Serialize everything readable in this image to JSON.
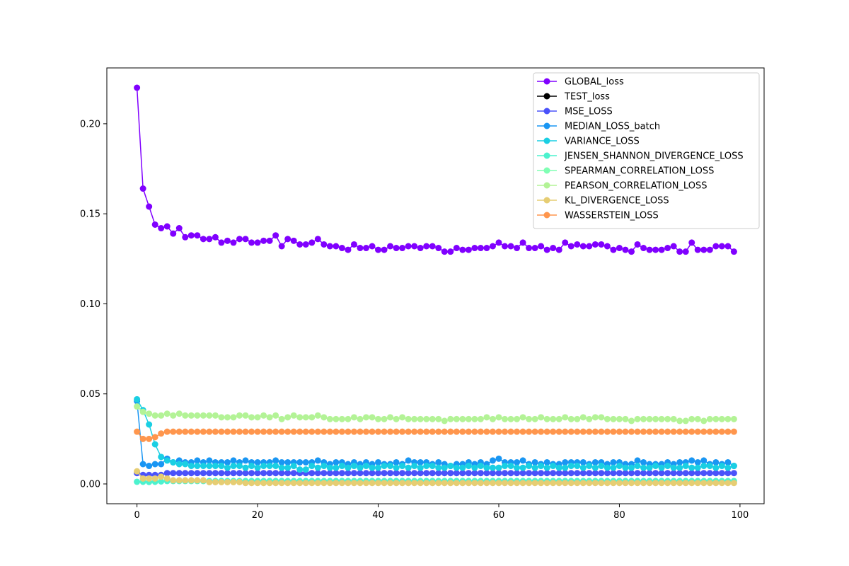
{
  "chart_data": {
    "type": "line",
    "title": "",
    "xlabel": "",
    "ylabel": "",
    "xlim": [
      -5,
      104
    ],
    "ylim": [
      -0.011,
      0.231
    ],
    "xticks": [
      0,
      20,
      40,
      60,
      80,
      100
    ],
    "xtick_labels": [
      "0",
      "20",
      "40",
      "60",
      "80",
      "100"
    ],
    "yticks": [
      0.0,
      0.05,
      0.1,
      0.15,
      0.2
    ],
    "ytick_labels": [
      "0.00",
      "0.05",
      "0.10",
      "0.15",
      "0.20"
    ],
    "grid": false,
    "legend_position": "top-right",
    "series": [
      {
        "name": "GLOBAL_loss",
        "color": "#8000ff",
        "values": [
          0.22,
          0.164,
          0.154,
          0.144,
          0.142,
          0.143,
          0.139,
          0.142,
          0.137,
          0.138,
          0.138,
          0.136,
          0.136,
          0.137,
          0.134,
          0.135,
          0.134,
          0.136,
          0.136,
          0.134,
          0.134,
          0.135,
          0.135,
          0.138,
          0.132,
          0.136,
          0.135,
          0.133,
          0.133,
          0.134,
          0.136,
          0.133,
          0.132,
          0.132,
          0.131,
          0.13,
          0.133,
          0.131,
          0.131,
          0.132,
          0.13,
          0.13,
          0.132,
          0.131,
          0.131,
          0.132,
          0.132,
          0.131,
          0.132,
          0.132,
          0.131,
          0.129,
          0.129,
          0.131,
          0.13,
          0.13,
          0.131,
          0.131,
          0.131,
          0.132,
          0.134,
          0.132,
          0.132,
          0.131,
          0.134,
          0.131,
          0.131,
          0.132,
          0.13,
          0.131,
          0.13,
          0.134,
          0.132,
          0.133,
          0.132,
          0.132,
          0.133,
          0.133,
          0.132,
          0.13,
          0.131,
          0.13,
          0.129,
          0.133,
          0.131,
          0.13,
          0.13,
          0.13,
          0.131,
          0.132,
          0.129,
          0.129,
          0.134,
          0.13,
          0.13,
          0.13,
          0.132,
          0.132,
          0.132,
          0.129
        ]
      },
      {
        "name": "TEST_loss",
        "color": "#000000",
        "values": []
      },
      {
        "name": "MSE_LOSS",
        "color": "#4a52fa",
        "values": [
          0.006,
          0.005,
          0.005,
          0.005,
          0.005,
          0.006,
          0.006,
          0.006,
          0.006,
          0.006,
          0.006,
          0.006,
          0.006,
          0.006,
          0.006,
          0.006,
          0.006,
          0.006,
          0.006,
          0.006,
          0.006,
          0.006,
          0.006,
          0.006,
          0.006,
          0.006,
          0.006,
          0.006,
          0.006,
          0.006,
          0.006,
          0.006,
          0.006,
          0.006,
          0.006,
          0.006,
          0.006,
          0.006,
          0.006,
          0.006,
          0.006,
          0.006,
          0.006,
          0.006,
          0.006,
          0.006,
          0.006,
          0.006,
          0.006,
          0.006,
          0.006,
          0.006,
          0.006,
          0.006,
          0.006,
          0.006,
          0.006,
          0.006,
          0.006,
          0.006,
          0.006,
          0.006,
          0.006,
          0.006,
          0.006,
          0.006,
          0.006,
          0.006,
          0.006,
          0.006,
          0.006,
          0.006,
          0.006,
          0.006,
          0.006,
          0.006,
          0.006,
          0.006,
          0.006,
          0.006,
          0.006,
          0.006,
          0.006,
          0.006,
          0.006,
          0.006,
          0.006,
          0.006,
          0.006,
          0.006,
          0.006,
          0.006,
          0.006,
          0.006,
          0.006,
          0.006,
          0.006,
          0.006,
          0.006,
          0.006
        ]
      },
      {
        "name": "MEDIAN_LOSS_batch",
        "color": "#1996f3",
        "values": [
          0.046,
          0.011,
          0.01,
          0.011,
          0.011,
          0.014,
          0.012,
          0.013,
          0.012,
          0.012,
          0.013,
          0.012,
          0.013,
          0.012,
          0.012,
          0.012,
          0.013,
          0.012,
          0.013,
          0.012,
          0.012,
          0.012,
          0.012,
          0.013,
          0.012,
          0.012,
          0.012,
          0.012,
          0.012,
          0.012,
          0.013,
          0.012,
          0.011,
          0.012,
          0.012,
          0.011,
          0.012,
          0.011,
          0.012,
          0.011,
          0.012,
          0.011,
          0.011,
          0.012,
          0.011,
          0.013,
          0.012,
          0.012,
          0.012,
          0.011,
          0.012,
          0.011,
          0.01,
          0.011,
          0.011,
          0.012,
          0.011,
          0.012,
          0.011,
          0.013,
          0.014,
          0.012,
          0.012,
          0.012,
          0.013,
          0.011,
          0.012,
          0.011,
          0.012,
          0.011,
          0.011,
          0.012,
          0.012,
          0.012,
          0.012,
          0.011,
          0.012,
          0.012,
          0.011,
          0.012,
          0.012,
          0.011,
          0.011,
          0.013,
          0.012,
          0.011,
          0.011,
          0.011,
          0.012,
          0.011,
          0.012,
          0.012,
          0.013,
          0.012,
          0.013,
          0.011,
          0.012,
          0.011,
          0.012,
          0.01
        ]
      },
      {
        "name": "VARIANCE_LOSS",
        "color": "#1acfe3",
        "values": [
          0.047,
          0.041,
          0.033,
          0.022,
          0.015,
          0.013,
          0.012,
          0.011,
          0.011,
          0.01,
          0.01,
          0.01,
          0.01,
          0.01,
          0.01,
          0.009,
          0.01,
          0.01,
          0.009,
          0.01,
          0.009,
          0.01,
          0.01,
          0.01,
          0.009,
          0.009,
          0.01,
          0.008,
          0.008,
          0.01,
          0.009,
          0.01,
          0.009,
          0.009,
          0.01,
          0.009,
          0.01,
          0.009,
          0.01,
          0.009,
          0.009,
          0.01,
          0.01,
          0.009,
          0.01,
          0.009,
          0.01,
          0.009,
          0.01,
          0.01,
          0.009,
          0.009,
          0.01,
          0.009,
          0.009,
          0.01,
          0.009,
          0.01,
          0.009,
          0.009,
          0.009,
          0.01,
          0.01,
          0.009,
          0.009,
          0.01,
          0.009,
          0.01,
          0.009,
          0.01,
          0.009,
          0.009,
          0.01,
          0.01,
          0.009,
          0.01,
          0.009,
          0.01,
          0.009,
          0.009,
          0.01,
          0.009,
          0.009,
          0.01,
          0.009,
          0.009,
          0.01,
          0.009,
          0.01,
          0.009,
          0.009,
          0.01,
          0.009,
          0.009,
          0.01,
          0.01,
          0.009,
          0.01,
          0.009,
          0.01
        ]
      },
      {
        "name": "JENSEN_SHANNON_DIVERGENCE_LOSS",
        "color": "#4cf2ce",
        "values": [
          0.0012,
          0.0012,
          0.0011,
          0.0012,
          0.0014,
          0.0016,
          0.0016,
          0.0016,
          0.0016,
          0.0016,
          0.0016,
          0.0016,
          0.0016,
          0.0016,
          0.0016,
          0.0016,
          0.0016,
          0.0016,
          0.0016,
          0.0016,
          0.0016,
          0.0016,
          0.0016,
          0.0016,
          0.0016,
          0.0016,
          0.0016,
          0.0016,
          0.0016,
          0.0016,
          0.0016,
          0.0016,
          0.0016,
          0.0016,
          0.0016,
          0.0016,
          0.0016,
          0.0016,
          0.0016,
          0.0016,
          0.0016,
          0.0016,
          0.0016,
          0.0016,
          0.0016,
          0.0016,
          0.0016,
          0.0016,
          0.0016,
          0.0016,
          0.0016,
          0.0016,
          0.0016,
          0.0016,
          0.0016,
          0.0016,
          0.0016,
          0.0016,
          0.0016,
          0.0016,
          0.0016,
          0.0016,
          0.0016,
          0.0016,
          0.0016,
          0.0016,
          0.0016,
          0.0016,
          0.0016,
          0.0016,
          0.0016,
          0.0016,
          0.0016,
          0.0016,
          0.0016,
          0.0016,
          0.0016,
          0.0016,
          0.0016,
          0.0016,
          0.0016,
          0.0016,
          0.0016,
          0.0016,
          0.0016,
          0.0016,
          0.0016,
          0.0016,
          0.0016,
          0.0016,
          0.0016,
          0.0016,
          0.0016,
          0.0016,
          0.0016,
          0.0016,
          0.0016,
          0.0016,
          0.0016,
          0.0016
        ]
      },
      {
        "name": "SPEARMAN_CORRELATION_LOSS",
        "color": "#80ffb4",
        "values": []
      },
      {
        "name": "PEARSON_CORRELATION_LOSS",
        "color": "#b3f396",
        "values": [
          0.043,
          0.04,
          0.039,
          0.038,
          0.038,
          0.039,
          0.038,
          0.039,
          0.038,
          0.038,
          0.038,
          0.038,
          0.038,
          0.038,
          0.037,
          0.037,
          0.037,
          0.038,
          0.038,
          0.037,
          0.037,
          0.038,
          0.037,
          0.038,
          0.036,
          0.037,
          0.038,
          0.037,
          0.037,
          0.037,
          0.038,
          0.037,
          0.036,
          0.036,
          0.036,
          0.036,
          0.037,
          0.036,
          0.037,
          0.037,
          0.036,
          0.036,
          0.037,
          0.036,
          0.037,
          0.036,
          0.036,
          0.036,
          0.036,
          0.036,
          0.036,
          0.035,
          0.036,
          0.036,
          0.036,
          0.036,
          0.036,
          0.036,
          0.037,
          0.036,
          0.037,
          0.036,
          0.036,
          0.036,
          0.037,
          0.036,
          0.036,
          0.037,
          0.036,
          0.036,
          0.036,
          0.037,
          0.036,
          0.036,
          0.037,
          0.036,
          0.037,
          0.037,
          0.036,
          0.036,
          0.036,
          0.036,
          0.035,
          0.036,
          0.036,
          0.036,
          0.036,
          0.036,
          0.036,
          0.036,
          0.035,
          0.035,
          0.036,
          0.036,
          0.035,
          0.036,
          0.036,
          0.036,
          0.036,
          0.036
        ]
      },
      {
        "name": "KL_DIVERGENCE_LOSS",
        "color": "#e6cd73",
        "values": [
          0.007,
          0.003,
          0.003,
          0.003,
          0.004,
          0.003,
          0.002,
          0.002,
          0.002,
          0.002,
          0.002,
          0.002,
          0.001,
          0.001,
          0.001,
          0.001,
          0.001,
          0.001,
          0.0005,
          0.0005,
          0.0005,
          0.0005,
          0.0005,
          0.0005,
          0.0005,
          0.0005,
          0.0005,
          0.0005,
          0.0005,
          0.0005,
          0.0005,
          0.0005,
          0.0005,
          0.0005,
          0.0005,
          0.0005,
          0.0005,
          0.0005,
          0.0005,
          0.0005,
          0.0005,
          0.0005,
          0.0005,
          0.0005,
          0.0005,
          0.0005,
          0.0005,
          0.0005,
          0.0005,
          0.0005,
          0.0005,
          0.0005,
          0.0005,
          0.0005,
          0.0005,
          0.0005,
          0.0005,
          0.0005,
          0.0005,
          0.0005,
          0.0005,
          0.0005,
          0.0005,
          0.0005,
          0.0005,
          0.0005,
          0.0005,
          0.0005,
          0.0005,
          0.0005,
          0.0005,
          0.0005,
          0.0005,
          0.0005,
          0.0005,
          0.0005,
          0.0005,
          0.0005,
          0.0005,
          0.0005,
          0.0005,
          0.0005,
          0.0005,
          0.0005,
          0.0005,
          0.0005,
          0.0005,
          0.0005,
          0.0005,
          0.0005,
          0.0005,
          0.0005,
          0.0005,
          0.0005,
          0.0005,
          0.0005,
          0.0005,
          0.0005,
          0.0005,
          0.0005
        ]
      },
      {
        "name": "WASSERSTEIN_LOSS",
        "color": "#ff964d",
        "values": [
          0.029,
          0.025,
          0.025,
          0.026,
          0.028,
          0.029,
          0.029,
          0.029,
          0.029,
          0.029,
          0.029,
          0.029,
          0.029,
          0.029,
          0.029,
          0.029,
          0.029,
          0.029,
          0.029,
          0.029,
          0.029,
          0.029,
          0.029,
          0.029,
          0.029,
          0.029,
          0.029,
          0.029,
          0.029,
          0.029,
          0.029,
          0.029,
          0.029,
          0.029,
          0.029,
          0.029,
          0.029,
          0.029,
          0.029,
          0.029,
          0.029,
          0.029,
          0.029,
          0.029,
          0.029,
          0.029,
          0.029,
          0.029,
          0.029,
          0.029,
          0.029,
          0.029,
          0.029,
          0.029,
          0.029,
          0.029,
          0.029,
          0.029,
          0.029,
          0.029,
          0.029,
          0.029,
          0.029,
          0.029,
          0.029,
          0.029,
          0.029,
          0.029,
          0.029,
          0.029,
          0.029,
          0.029,
          0.029,
          0.029,
          0.029,
          0.029,
          0.029,
          0.029,
          0.029,
          0.029,
          0.029,
          0.029,
          0.029,
          0.029,
          0.029,
          0.029,
          0.029,
          0.029,
          0.029,
          0.029,
          0.029,
          0.029,
          0.029,
          0.029,
          0.029,
          0.029,
          0.029,
          0.029,
          0.029,
          0.029
        ]
      }
    ]
  }
}
